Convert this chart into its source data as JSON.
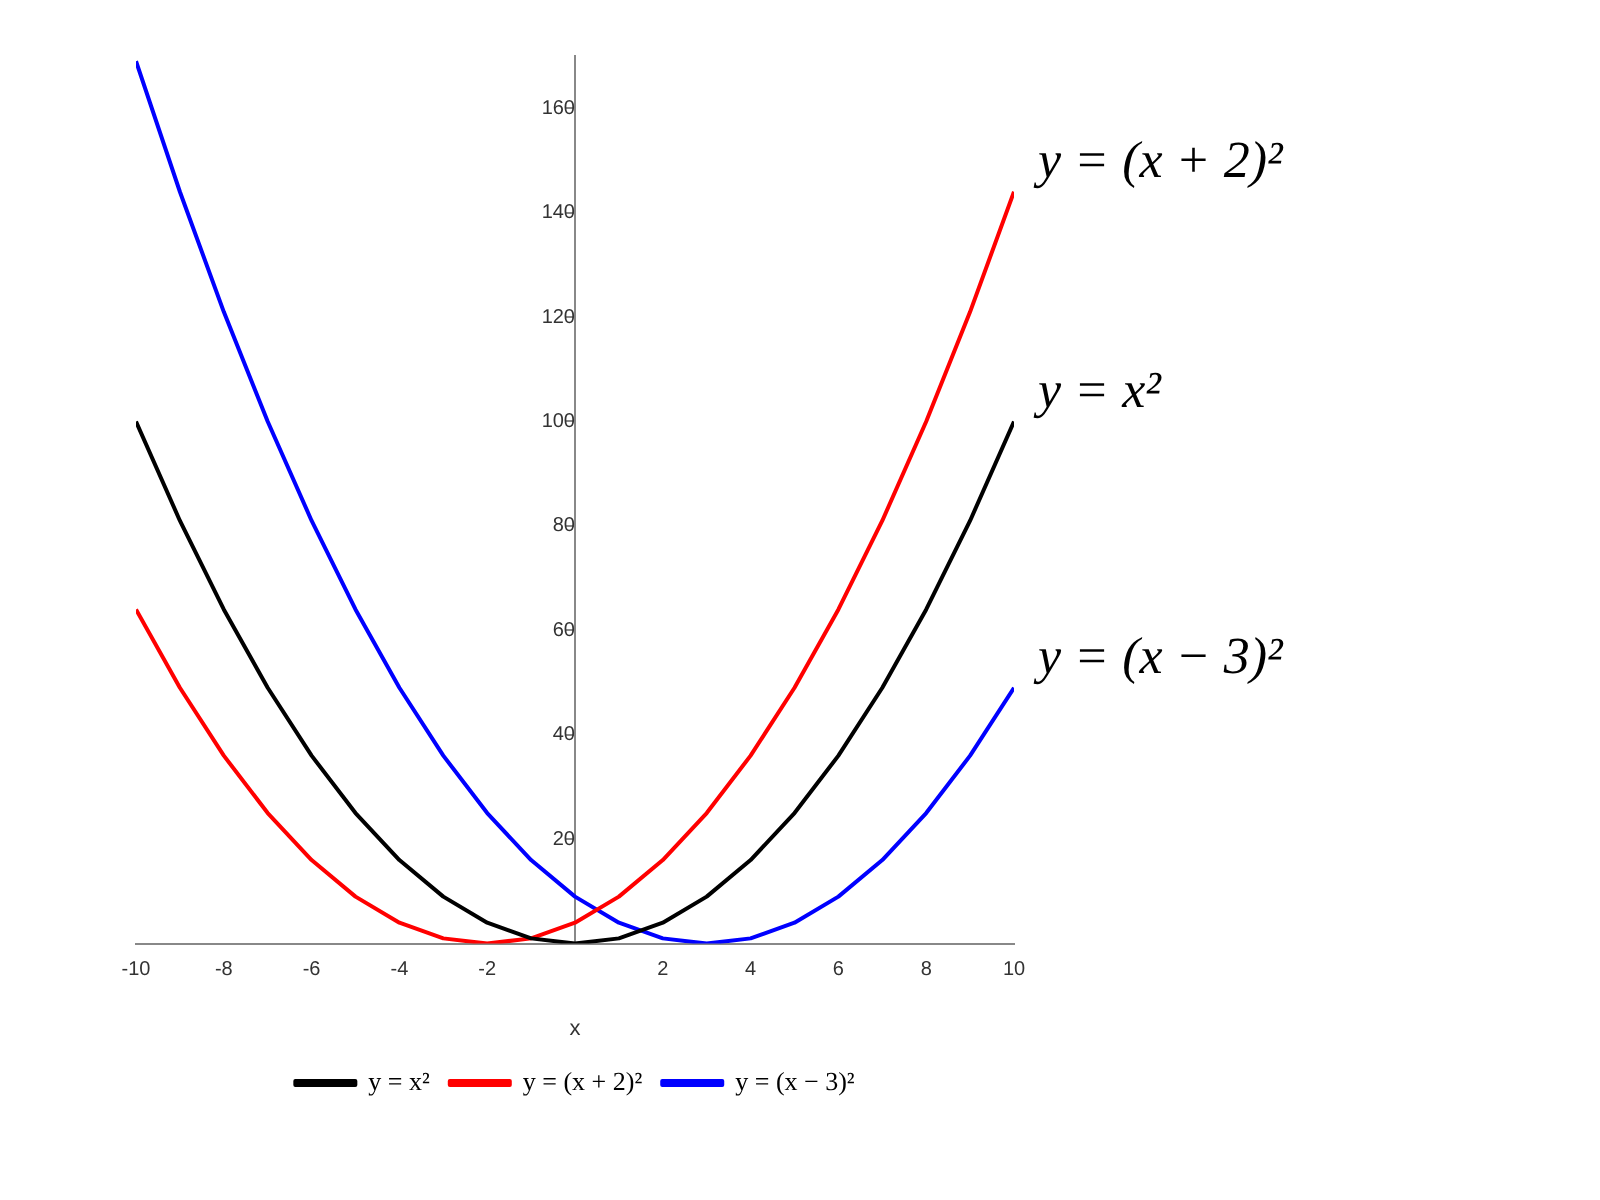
{
  "chart_data": {
    "type": "line",
    "xlabel": "x",
    "x": [
      -10,
      -9,
      -8,
      -7,
      -6,
      -5,
      -4,
      -3,
      -2,
      -1,
      0,
      1,
      2,
      3,
      4,
      5,
      6,
      7,
      8,
      9,
      10
    ],
    "series": [
      {
        "name": "y = x²",
        "color": "#000000",
        "values": [
          100,
          81,
          64,
          49,
          36,
          25,
          16,
          9,
          4,
          1,
          0,
          1,
          4,
          9,
          16,
          25,
          36,
          49,
          64,
          81,
          100
        ]
      },
      {
        "name": "y = (x + 2)²",
        "color": "#ff0000",
        "values": [
          64,
          49,
          36,
          25,
          16,
          9,
          4,
          1,
          0,
          1,
          4,
          9,
          16,
          25,
          36,
          49,
          64,
          81,
          100,
          121,
          144
        ]
      },
      {
        "name": "y = (x − 3)²",
        "color": "#0000ff",
        "values": [
          169,
          144,
          121,
          100,
          81,
          64,
          49,
          36,
          25,
          16,
          9,
          4,
          1,
          0,
          1,
          4,
          9,
          16,
          25,
          36,
          49
        ]
      }
    ],
    "xlim": [
      -10,
      10
    ],
    "ylim": [
      0,
      170
    ],
    "xticks": [
      -10,
      -8,
      -6,
      -4,
      -2,
      2,
      4,
      6,
      8,
      10
    ],
    "yticks": [
      20,
      40,
      60,
      80,
      100,
      120,
      140,
      160
    ],
    "grid": false,
    "legend": "bottom",
    "marker": "none",
    "line_style": "solid"
  }
}
